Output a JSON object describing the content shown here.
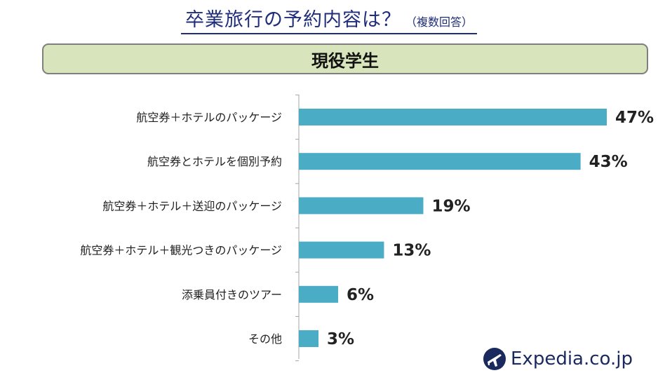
{
  "title": {
    "main": "卒業旅行の予約内容は？",
    "sub": "（複数回答）"
  },
  "banner": "現役学生",
  "chart_data": {
    "type": "bar",
    "orientation": "horizontal",
    "title": "卒業旅行の予約内容は？（複数回答）",
    "subtitle": "現役学生",
    "categories": [
      "航空券＋ホテルのパッケージ",
      "航空券とホテルを個別予約",
      "航空券＋ホテル＋送迎のパッケージ",
      "航空券＋ホテル＋観光つきのパッケージ",
      "添乗員付きのツアー",
      "その他"
    ],
    "values": [
      47,
      43,
      19,
      13,
      6,
      3
    ],
    "value_labels": [
      "47%",
      "43%",
      "19%",
      "13%",
      "6%",
      "3%"
    ],
    "unit": "%",
    "bar_color": "#4bacc6",
    "xlim": [
      0,
      50
    ],
    "grid": false
  },
  "logo": {
    "text": "Expedia.co.jp",
    "icon": "plane-globe-icon",
    "color": "#1a2a5e"
  }
}
